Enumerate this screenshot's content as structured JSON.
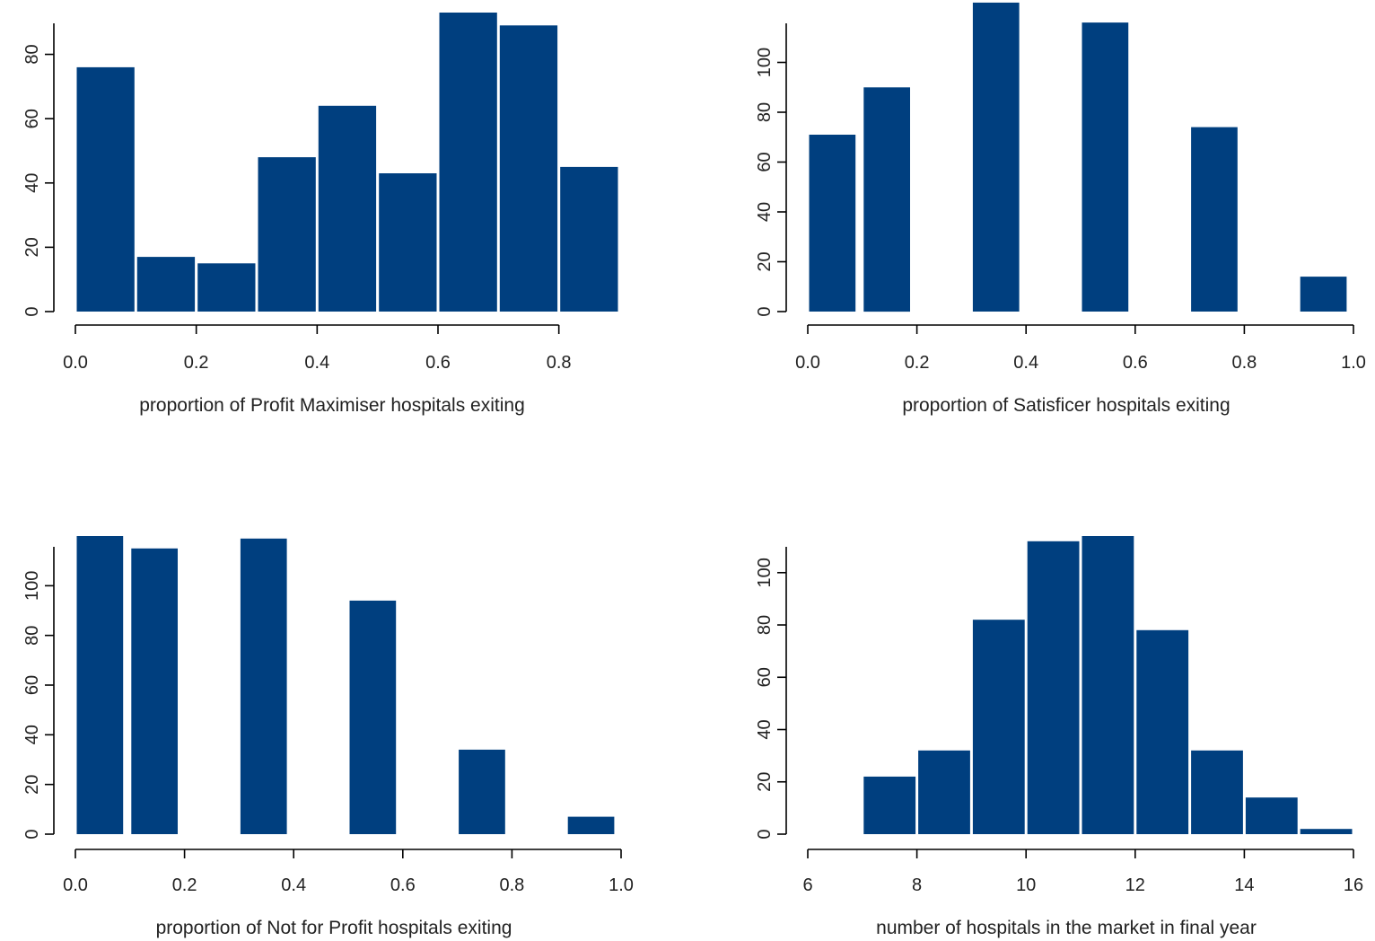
{
  "bar_color": "#003F7F",
  "chart_data": [
    {
      "type": "bar",
      "title": "",
      "xlabel": "proportion of Profit Maximiser hospitals exiting",
      "ylabel": "",
      "bins": [
        [
          0.0,
          0.1
        ],
        [
          0.1,
          0.2
        ],
        [
          0.2,
          0.3
        ],
        [
          0.3,
          0.4
        ],
        [
          0.4,
          0.5
        ],
        [
          0.5,
          0.6
        ],
        [
          0.6,
          0.7
        ],
        [
          0.7,
          0.8
        ],
        [
          0.8,
          0.9
        ]
      ],
      "values": [
        76,
        17,
        15,
        48,
        64,
        43,
        93,
        89,
        45
      ],
      "xlim": [
        0.0,
        0.9
      ],
      "xticks": [
        0.0,
        0.2,
        0.4,
        0.6,
        0.8
      ],
      "xtick_labels": [
        "0.0",
        "0.2",
        "0.4",
        "0.6",
        "0.8"
      ],
      "ylim": [
        0,
        93
      ],
      "yticks": [
        0,
        20,
        40,
        60,
        80
      ],
      "ytick_labels": [
        "0",
        "20",
        "40",
        "60",
        "80"
      ],
      "grid": false
    },
    {
      "type": "bar",
      "title": "",
      "xlabel": "proportion of Satisficer hospitals exiting",
      "ylabel": "",
      "bins": [
        [
          0.0,
          0.09
        ],
        [
          0.1,
          0.19
        ],
        [
          0.3,
          0.39
        ],
        [
          0.5,
          0.59
        ],
        [
          0.7,
          0.79
        ],
        [
          0.9,
          0.99
        ]
      ],
      "values": [
        71,
        90,
        124,
        116,
        74,
        14
      ],
      "xlim": [
        0.0,
        1.0
      ],
      "xticks": [
        0.0,
        0.2,
        0.4,
        0.6,
        0.8,
        1.0
      ],
      "xtick_labels": [
        "0.0",
        "0.2",
        "0.4",
        "0.6",
        "0.8",
        "1.0"
      ],
      "ylim": [
        0,
        120
      ],
      "yticks": [
        0,
        20,
        40,
        60,
        80,
        100
      ],
      "ytick_labels": [
        "0",
        "20",
        "40",
        "60",
        "80",
        "100"
      ],
      "grid": false
    },
    {
      "type": "bar",
      "title": "",
      "xlabel": "proportion of Not for Profit hospitals exiting",
      "ylabel": "",
      "bins": [
        [
          0.0,
          0.09
        ],
        [
          0.1,
          0.19
        ],
        [
          0.3,
          0.39
        ],
        [
          0.5,
          0.59
        ],
        [
          0.7,
          0.79
        ],
        [
          0.9,
          0.99
        ]
      ],
      "values": [
        120,
        115,
        119,
        94,
        34,
        7
      ],
      "xlim": [
        0.0,
        1.0
      ],
      "xticks": [
        0.0,
        0.2,
        0.4,
        0.6,
        0.8,
        1.0
      ],
      "xtick_labels": [
        "0.0",
        "0.2",
        "0.4",
        "0.6",
        "0.8",
        "1.0"
      ],
      "ylim": [
        0,
        120
      ],
      "yticks": [
        0,
        20,
        40,
        60,
        80,
        100
      ],
      "ytick_labels": [
        "0",
        "20",
        "40",
        "60",
        "80",
        "100"
      ],
      "grid": false
    },
    {
      "type": "bar",
      "title": "",
      "xlabel": "number of hospitals in the market in final year",
      "ylabel": "",
      "bins": [
        [
          7,
          8
        ],
        [
          8,
          9
        ],
        [
          9,
          10
        ],
        [
          10,
          11
        ],
        [
          11,
          12
        ],
        [
          12,
          13
        ],
        [
          13,
          14
        ],
        [
          14,
          15
        ],
        [
          15,
          16
        ]
      ],
      "values": [
        22,
        32,
        82,
        112,
        114,
        78,
        32,
        14,
        2
      ],
      "xlim": [
        6,
        16
      ],
      "xticks": [
        6,
        8,
        10,
        12,
        14,
        16
      ],
      "xtick_labels": [
        "6",
        "8",
        "10",
        "12",
        "14",
        "16"
      ],
      "ylim": [
        0,
        114
      ],
      "yticks": [
        0,
        20,
        40,
        60,
        80,
        100
      ],
      "ytick_labels": [
        "0",
        "20",
        "40",
        "60",
        "80",
        "100"
      ],
      "grid": false
    }
  ]
}
